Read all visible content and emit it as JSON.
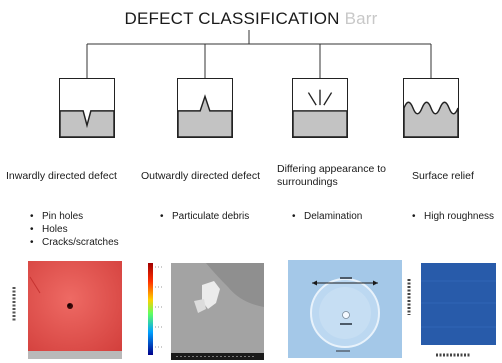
{
  "title": {
    "text": "DEFECT CLASSIFICATION",
    "watermark": "Barr"
  },
  "categories": [
    {
      "name": "Inwardly directed defect",
      "examples": [
        "Pin holes",
        "Holes",
        "Cracks/scratches"
      ],
      "icon": "v-notch-defect-icon"
    },
    {
      "name": "Outwardly directed defect",
      "examples": [
        "Particulate debris"
      ],
      "icon": "spike-defect-icon"
    },
    {
      "name_lines": [
        "Differing appearance to",
        "surroundings"
      ],
      "examples": [
        "Delamination"
      ],
      "icon": "radiating-lines-defect-icon"
    },
    {
      "name": "Surface relief",
      "examples": [
        "High roughness"
      ],
      "icon": "wavy-surface-icon"
    }
  ],
  "images": [
    {
      "name": "red surface topography map",
      "colors": {
        "surface": "#e14f4c"
      }
    },
    {
      "name": "grayscale particle scan with color scale",
      "colors": {
        "background": "#9a9a9a"
      }
    },
    {
      "name": "blue delamination circle micrograph",
      "colors": {
        "background": "#9fc4e6"
      }
    },
    {
      "name": "blue rough surface map",
      "colors": {
        "surface": "#2b5fb0"
      }
    }
  ]
}
